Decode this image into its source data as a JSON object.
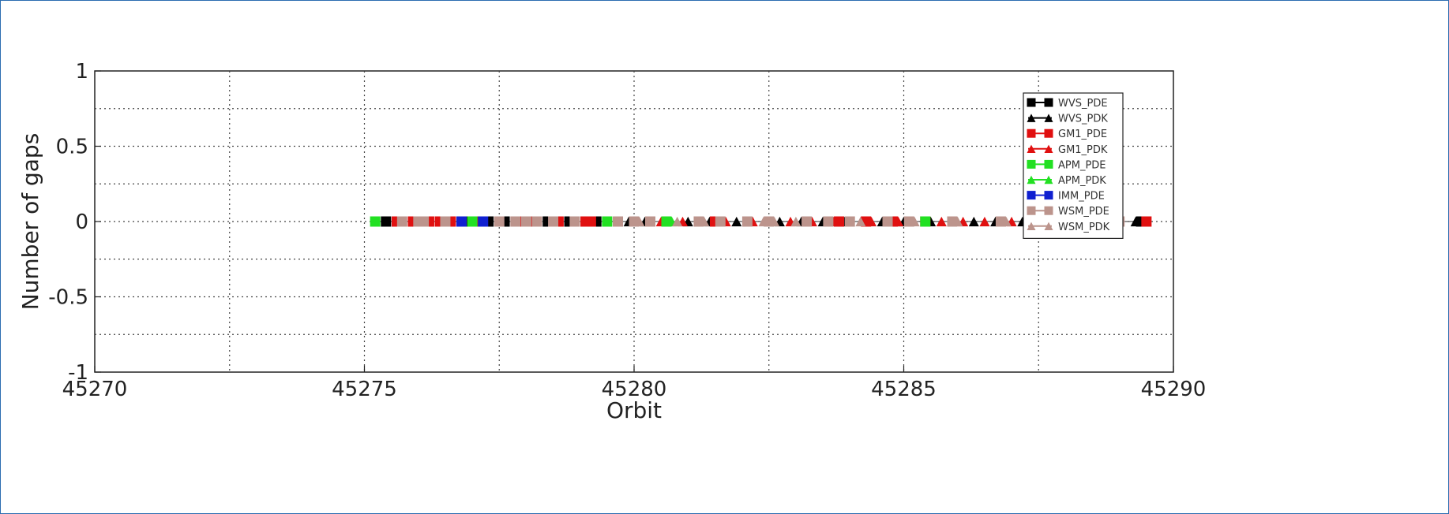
{
  "chart_data": {
    "type": "line",
    "title": "",
    "xlabel": "Orbit",
    "ylabel": "Number of gaps",
    "xlim": [
      45270,
      45290
    ],
    "ylim": [
      -1,
      1
    ],
    "xticks": [
      "45270",
      "45275",
      "45280",
      "45285",
      "45290"
    ],
    "yticks": [
      "1",
      "0.5",
      "0",
      "-0.5",
      "-1"
    ],
    "grid": true,
    "legend_position": "top-right",
    "series": [
      {
        "name": "WVS_PDE",
        "color": "#000000",
        "marker": "square",
        "x": [
          45275.4,
          45276.9,
          45277.3,
          45277.6,
          45278.4,
          45278.8,
          45279.3,
          45289.4
        ],
        "y": [
          0,
          0,
          0,
          0,
          0,
          0,
          0,
          0
        ]
      },
      {
        "name": "WVS_PDK",
        "color": "#000000",
        "marker": "triangle",
        "x": [
          45279.7,
          45279.9,
          45280.2,
          45280.6,
          45281.0,
          45281.4,
          45281.9,
          45282.7,
          45283.1,
          45283.5,
          45283.9,
          45284.6,
          45285.0,
          45285.5,
          45285.9,
          45286.3,
          45286.7,
          45287.2,
          45287.6,
          45288.1,
          45288.8,
          45289.3
        ],
        "y": [
          0,
          0,
          0,
          0,
          0,
          0,
          0,
          0,
          0,
          0,
          0,
          0,
          0,
          0,
          0,
          0,
          0,
          0,
          0,
          0,
          0,
          0
        ]
      },
      {
        "name": "GM1_PDE",
        "color": "#e01010",
        "marker": "square",
        "x": [
          45275.6,
          45275.9,
          45276.2,
          45276.4,
          45276.6,
          45276.8,
          45277.1,
          45277.9,
          45278.1,
          45278.6,
          45279.1,
          45279.2,
          45281.5,
          45283.8,
          45284.3,
          45284.8,
          45285.4,
          45288.5,
          45288.9,
          45289.5
        ],
        "y": [
          0,
          0,
          0,
          0,
          0,
          0,
          0,
          0,
          0,
          0,
          0,
          0,
          0,
          0,
          0,
          0,
          0,
          0,
          0,
          0
        ]
      },
      {
        "name": "GM1_PDK",
        "color": "#e01010",
        "marker": "triangle",
        "x": [
          45280.5,
          45280.9,
          45281.7,
          45282.2,
          45282.9,
          45283.3,
          45283.7,
          45284.4,
          45284.9,
          45285.7,
          45286.1,
          45286.5,
          45287.0,
          45287.8,
          45288.3,
          45288.7
        ],
        "y": [
          0,
          0,
          0,
          0,
          0,
          0,
          0,
          0,
          0,
          0,
          0,
          0,
          0,
          0,
          0,
          0
        ]
      },
      {
        "name": "APM_PDE",
        "color": "#22e022",
        "marker": "square",
        "x": [
          45275.2,
          45277.0,
          45279.5,
          45280.6,
          45285.4
        ],
        "y": [
          0,
          0,
          0,
          0,
          0
        ]
      },
      {
        "name": "APM_PDK",
        "color": "#22e022",
        "marker": "triangle",
        "x": [
          45280.7
        ],
        "y": [
          0
        ]
      },
      {
        "name": "IMM_PDE",
        "color": "#1020d0",
        "marker": "square",
        "x": [
          45276.8,
          45277.2
        ],
        "y": [
          0,
          0
        ]
      },
      {
        "name": "WSM_PDE",
        "color": "#bc948c",
        "marker": "square",
        "x": [
          45275.7,
          45276.0,
          45276.1,
          45276.5,
          45277.5,
          45277.8,
          45278.0,
          45278.2,
          45278.5,
          45278.9,
          45279.7,
          45280.0,
          45280.3,
          45281.2,
          45281.6,
          45282.1,
          45282.5,
          45283.2,
          45283.6,
          45284.0,
          45284.7,
          45285.1,
          45285.9,
          45286.8,
          45287.4,
          45287.9,
          45288.6,
          45289.0
        ],
        "y": [
          0,
          0,
          0,
          0,
          0,
          0,
          0,
          0,
          0,
          0,
          0,
          0,
          0,
          0,
          0,
          0,
          0,
          0,
          0,
          0,
          0,
          0,
          0,
          0,
          0,
          0,
          0,
          0
        ]
      },
      {
        "name": "WSM_PDK",
        "color": "#bc948c",
        "marker": "triangle",
        "x": [
          45280.1,
          45280.8,
          45281.3,
          45282.4,
          45282.6,
          45283.0,
          45284.2,
          45285.2,
          45286.0,
          45286.9,
          45287.5,
          45288.2
        ],
        "y": [
          0,
          0,
          0,
          0,
          0,
          0,
          0,
          0,
          0,
          0,
          0,
          0
        ]
      }
    ]
  }
}
